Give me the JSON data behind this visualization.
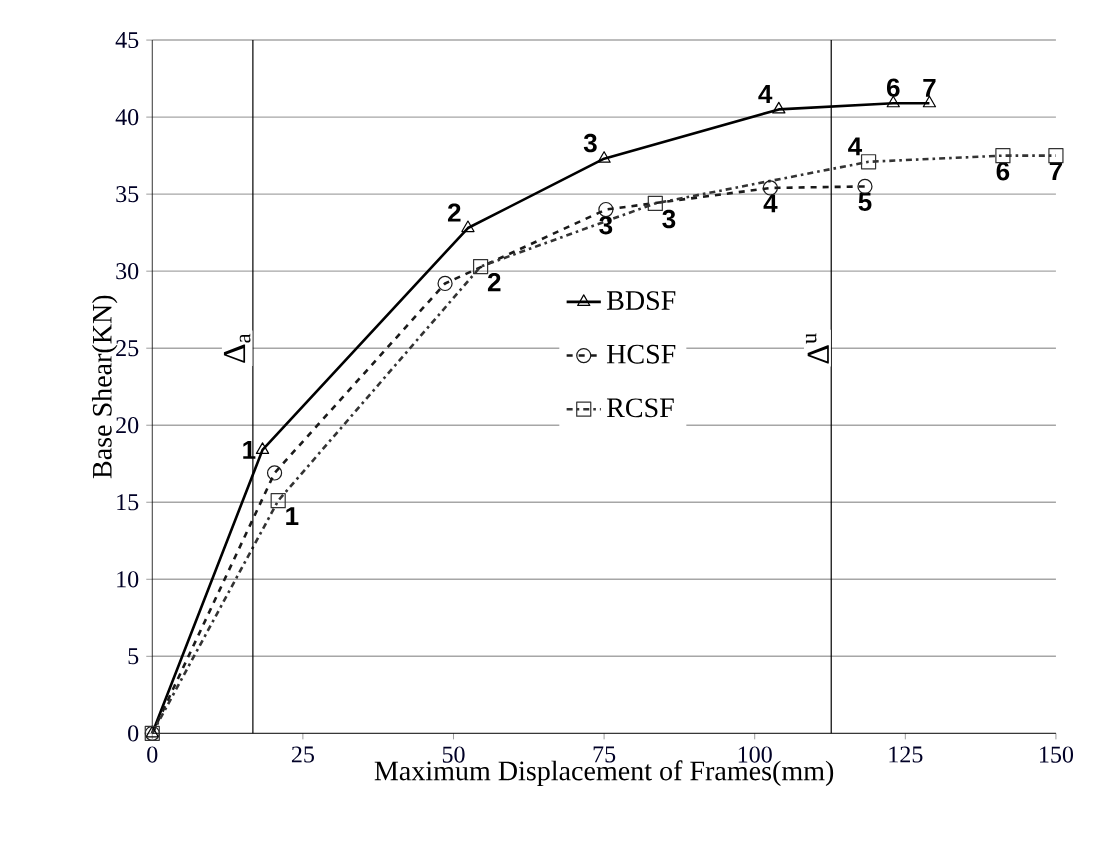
{
  "chart_data": {
    "type": "line",
    "xlabel": "Maximum Displacement of Frames(mm)",
    "ylabel": "Base Shear(KN)",
    "xlim": [
      0,
      150
    ],
    "xticks": [
      0,
      25,
      50,
      75,
      100,
      125,
      150
    ],
    "ylim": [
      0,
      45
    ],
    "yticks": [
      0,
      5,
      10,
      15,
      20,
      25,
      30,
      35,
      40,
      45
    ],
    "grid": "y",
    "legend": "center",
    "series": [
      {
        "name": "BDSF",
        "color": "#000000",
        "marker": "triangle",
        "line_style": "solid",
        "x": [
          0,
          18.3,
          52.4,
          75,
          104,
          123,
          129
        ],
        "values": [
          0,
          18.4,
          32.8,
          37.3,
          40.5,
          40.9,
          40.9
        ]
      },
      {
        "name": "HCSF",
        "color": "#1a1a1a",
        "marker": "circle",
        "line_style": "dashed",
        "x": [
          0,
          20.3,
          48.6,
          75.3,
          102.6,
          118.3
        ],
        "values": [
          0,
          16.9,
          29.2,
          34,
          35.4,
          35.5
        ]
      },
      {
        "name": "RCSF",
        "color": "#333333",
        "marker": "square",
        "line_style": "dashdot",
        "x": [
          0,
          20.9,
          54.5,
          83.5,
          118.9,
          141.2,
          150
        ],
        "values": [
          0,
          15.1,
          30.3,
          34.4,
          37.1,
          37.5,
          37.5
        ]
      }
    ],
    "ref_lines": [
      {
        "axis": "x",
        "value": 16.7,
        "label": "Δ$_{a}$",
        "color": "#000000"
      },
      {
        "axis": "x",
        "value": 112.7,
        "label": "Δ$^{u}$",
        "color": "#000000"
      }
    ],
    "annotations": [
      {
        "text": "1",
        "x": 18.3,
        "y": 18.4
      },
      {
        "text": "2",
        "x": 52.4,
        "y": 32.8
      },
      {
        "text": "3",
        "x": 75,
        "y": 37.3
      },
      {
        "text": "4",
        "x": 104,
        "y": 40.5
      },
      {
        "text": "6",
        "x": 123,
        "y": 40.9
      },
      {
        "text": "7",
        "x": 129,
        "y": 40.9
      },
      {
        "text": "3",
        "x": 75.3,
        "y": 34
      },
      {
        "text": "4",
        "x": 102.6,
        "y": 35.4
      },
      {
        "text": "5",
        "x": 118.3,
        "y": 35.5
      },
      {
        "text": "1",
        "x": 20.9,
        "y": 15.1
      },
      {
        "text": "2",
        "x": 54.5,
        "y": 30.3
      },
      {
        "text": "3",
        "x": 83.5,
        "y": 34.4
      },
      {
        "text": "4",
        "x": 118.9,
        "y": 37.1
      },
      {
        "text": "6",
        "x": 141.2,
        "y": 37.5
      },
      {
        "text": "7",
        "x": 150,
        "y": 37.5
      }
    ]
  }
}
